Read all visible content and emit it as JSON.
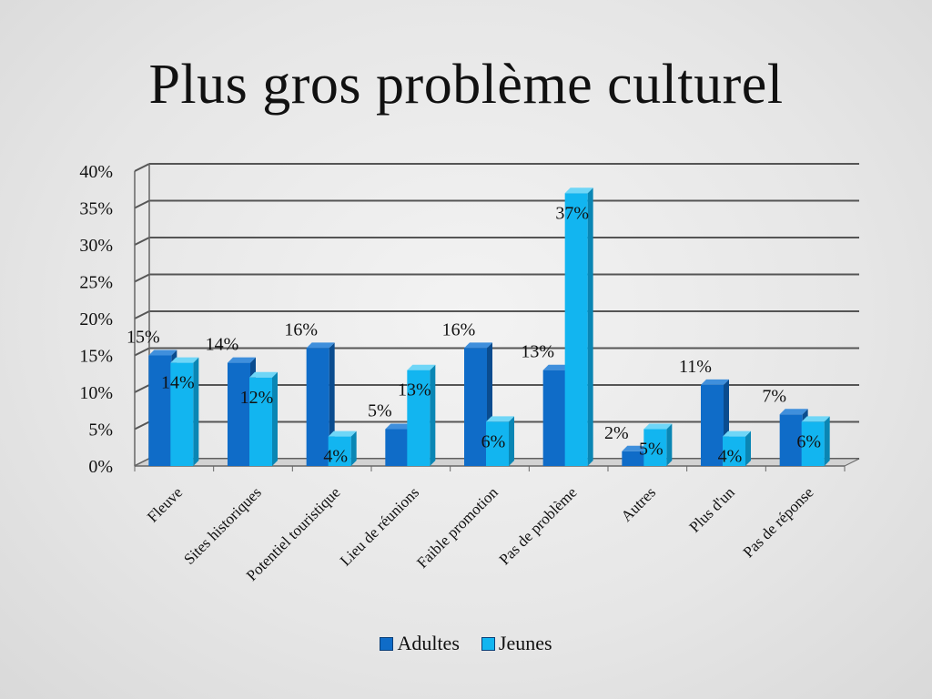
{
  "title": "Plus gros problème culturel",
  "chart_data": {
    "type": "bar",
    "title": "Plus gros problème culturel",
    "categories": [
      "Fleuve",
      "Sites historiques",
      "Potentiel touristique",
      "Lieu de réunions",
      "Faible promotion",
      "Pas de problème",
      "Autres",
      "Plus d'un",
      "Pas de réponse"
    ],
    "series": [
      {
        "name": "Adultes",
        "values": [
          15,
          14,
          16,
          5,
          16,
          13,
          2,
          11,
          7
        ],
        "color": "#0f6cc8"
      },
      {
        "name": "Jeunes",
        "values": [
          14,
          12,
          4,
          13,
          6,
          37,
          5,
          4,
          6
        ],
        "color": "#12b5f0"
      }
    ],
    "data_labels": [
      [
        "15%",
        "14%",
        "16%",
        "5%",
        "16%",
        "13%",
        "2%",
        "11%",
        "7%"
      ],
      [
        "14%",
        "12%",
        "4%",
        "13%",
        "6%",
        "37%",
        "5%",
        "4%",
        "6%"
      ]
    ],
    "yticks": [
      "0%",
      "5%",
      "10%",
      "15%",
      "20%",
      "25%",
      "30%",
      "35%",
      "40%"
    ],
    "ylim": [
      0,
      40
    ],
    "unit": "%",
    "grid": true,
    "legend_position": "bottom"
  }
}
